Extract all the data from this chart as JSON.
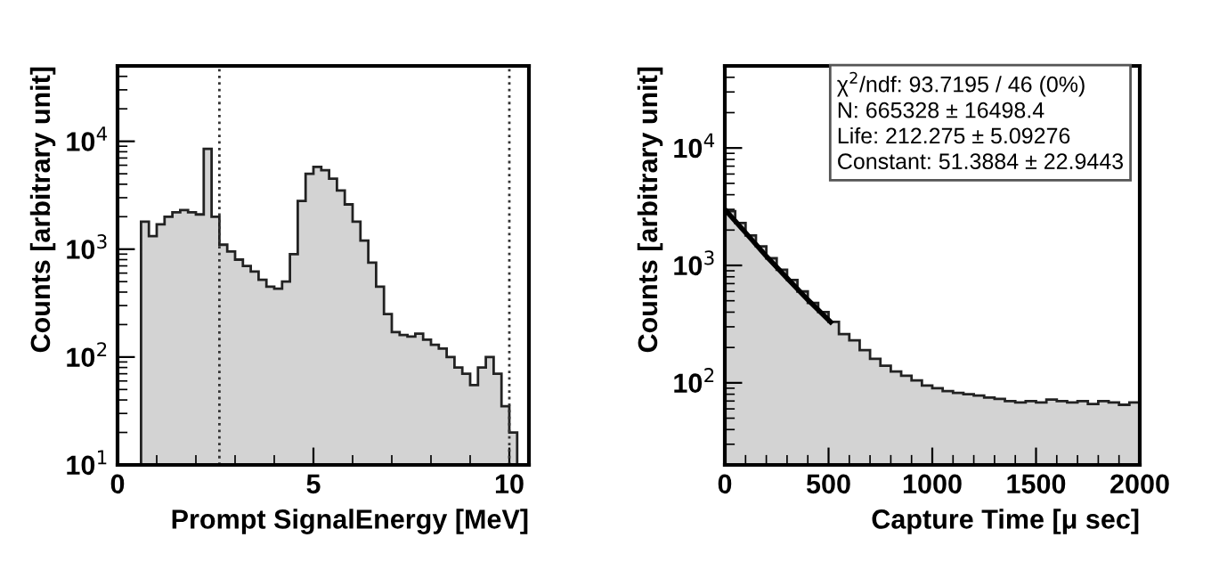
{
  "chart_data": [
    {
      "type": "histogram",
      "xlabel": "Prompt SignalEnergy [MeV]",
      "ylabel": "Counts [arbitrary unit]",
      "log": "y",
      "grid": false,
      "color": "#d3d3d3",
      "bins": [
        0.6,
        0.8,
        1.0,
        1.2,
        1.4,
        1.6,
        1.8,
        2.0,
        2.2,
        2.4,
        2.6,
        2.8,
        3.0,
        3.2,
        3.4,
        3.6,
        3.8,
        4.0,
        4.2,
        4.4,
        4.6,
        4.8,
        5.0,
        5.2,
        5.4,
        5.6,
        5.8,
        6.0,
        6.2,
        6.4,
        6.6,
        6.8,
        7.0,
        7.2,
        7.4,
        7.6,
        7.8,
        8.0,
        8.2,
        8.4,
        8.6,
        8.8,
        9.0,
        9.2,
        9.4,
        9.6,
        9.8,
        10.0,
        10.2
      ],
      "values": [
        1800,
        1320,
        1700,
        2000,
        2200,
        2300,
        2200,
        2100,
        8500,
        2000,
        1100,
        950,
        800,
        700,
        620,
        520,
        450,
        430,
        500,
        900,
        2800,
        5000,
        5800,
        5400,
        4500,
        3500,
        2600,
        1800,
        1200,
        750,
        450,
        250,
        170,
        160,
        155,
        165,
        145,
        130,
        120,
        100,
        80,
        70,
        55,
        80,
        100,
        70,
        35,
        20
      ],
      "xlim": [
        0,
        10.5
      ],
      "xticks": [
        0,
        5,
        10
      ],
      "ylim": [
        10,
        50000
      ],
      "yticks": [
        {
          "value": 10,
          "label": "10$^{1}$"
        },
        {
          "value": 100,
          "label": "10$^{2}$"
        },
        {
          "value": 1000,
          "label": "10$^{3}$"
        },
        {
          "value": 10000,
          "label": "10$^{4}$"
        }
      ],
      "ref_lines": [
        {
          "axis": "x",
          "value": 2.6,
          "line_style": "dotted"
        },
        {
          "axis": "x",
          "value": 10,
          "line_style": "dotted"
        }
      ]
    },
    {
      "type": "histogram",
      "xlabel": "Capture Time [μ sec]",
      "ylabel": "Counts [arbitrary unit]",
      "log": "y",
      "grid": false,
      "bins": [
        0,
        50,
        100,
        150,
        200,
        250,
        300,
        350,
        400,
        450,
        500,
        550,
        600,
        650,
        700,
        750,
        800,
        850,
        900,
        950,
        1000,
        1050,
        1100,
        1150,
        1200,
        1250,
        1300,
        1350,
        1400,
        1450,
        1500,
        1550,
        1600,
        1650,
        1700,
        1750,
        1800,
        1850,
        1900,
        1950,
        2000
      ],
      "series": [
        {
          "type": "histogram",
          "color": "#d3d3d3",
          "values": [
            2900,
            2300,
            1800,
            1450,
            1150,
            920,
            750,
            600,
            480,
            400,
            330,
            260,
            230,
            190,
            160,
            140,
            125,
            115,
            105,
            95,
            90,
            85,
            82,
            80,
            78,
            75,
            73,
            70,
            68,
            70,
            68,
            72,
            70,
            68,
            70,
            66,
            70,
            68,
            65,
            68
          ]
        },
        {
          "type": "line",
          "color": "#000000",
          "x": [
            0,
            100,
            200,
            300,
            400,
            510
          ],
          "values": [
            3000,
            1900,
            1200,
            780,
            510,
            330
          ]
        }
      ],
      "xlim": [
        0,
        2000
      ],
      "xticks": [
        0,
        500,
        1000,
        1500,
        2000
      ],
      "ylim": [
        20,
        50000
      ],
      "yticks": [
        {
          "value": 100,
          "label": "10$^{2}$"
        },
        {
          "value": 1000,
          "label": "10$^{3}$"
        },
        {
          "value": 10000,
          "label": "10$^{4}$"
        }
      ],
      "annotations": [
        "χ$^{2}$/ndf: 93.7195 / 46 (0%)",
        "N: 665328 ± 16498.4",
        "Life: 212.275 ± 5.09276",
        "Constant: 51.3884 ± 22.9443"
      ]
    }
  ]
}
